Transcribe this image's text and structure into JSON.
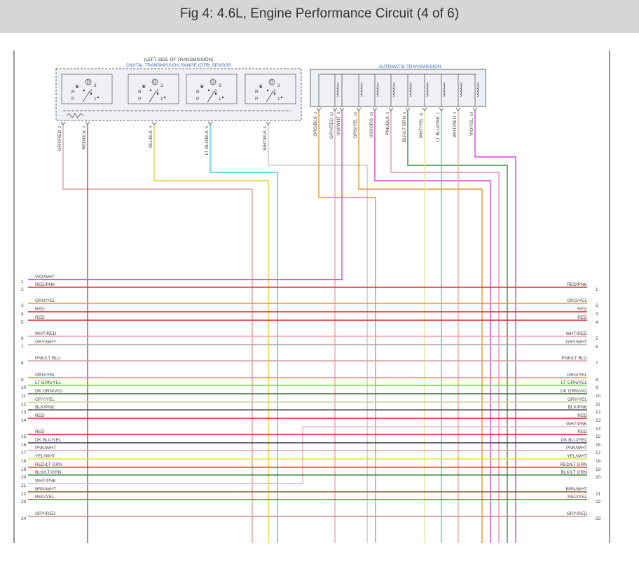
{
  "header": {
    "title": "Fig 4: 4.6L, Engine Performance Circuit (4 of 6)"
  },
  "dtr_sensor": {
    "location": "(LEFT SIDE OF TRANSMISSION)",
    "name": "DIGITAL TRANSMISSION RANGE (DTR) SENSOR",
    "switch_labels": [
      "N",
      "R",
      "P",
      "D",
      "3",
      "2",
      "1"
    ],
    "pins": [
      {
        "wire": "GRY/RED",
        "pin": 2,
        "color": "#d9a09a"
      },
      {
        "wire": "RED/BLK",
        "pin": 3,
        "color": "#d43a3a"
      },
      {
        "wire": "YEL/BLK",
        "pin": 4,
        "color": "#e6d23a"
      },
      {
        "wire": "LT BLU/BLK",
        "pin": 5,
        "color": "#3ad0e0"
      },
      {
        "wire": "WHT/BLK",
        "pin": 6,
        "color": "#c8c8c8"
      }
    ]
  },
  "transmission": {
    "name": "AUTOMATIC TRANSMISSION",
    "pins": [
      {
        "wire": "ORG/BLK",
        "pin": 2,
        "color": "#e8962a"
      },
      {
        "wire": "GRY/RED",
        "pin": 12,
        "color": "#e0a8a8"
      },
      {
        "wire": "VIO/WHT",
        "pin": 3,
        "color": "#e040e0"
      },
      {
        "wire": "ORG/YEL",
        "pin": 16,
        "color": "#e8962a"
      },
      {
        "wire": "VIO/ORG",
        "pin": 15,
        "color": "#e040d0"
      },
      {
        "wire": "PNK/BLK",
        "pin": 6,
        "color": "#e890b0"
      },
      {
        "wire": "BLK/LT GRN",
        "pin": 5,
        "color": "#3a8a3a"
      },
      {
        "wire": "WHT/YEL",
        "pin": 11,
        "color": "#f0e0a0"
      },
      {
        "wire": "LT BLU/PNK",
        "pin": 1,
        "color": "#3ad0e0"
      },
      {
        "wire": "WHT/RED",
        "pin": 4,
        "color": "#e8a8a0"
      },
      {
        "wire": "VIO/YEL",
        "pin": 14,
        "color": "#e040e0"
      }
    ]
  },
  "harness_rows": [
    {
      "left_pin": 1,
      "label": "VIO/WHT",
      "color": "#e040e0"
    },
    {
      "left_pin": 2,
      "label": "RED/PNK",
      "right_pin": 1,
      "color": "#d93030"
    },
    {
      "left_pin": 3,
      "label": "ORG/YEL",
      "right_pin": 2,
      "color": "#e8962a"
    },
    {
      "left_pin": 4,
      "label": "RED",
      "right_pin": 3,
      "color": "#e02020"
    },
    {
      "left_pin": 5,
      "label": "RED",
      "right_pin": 4,
      "color": "#e02020"
    },
    {
      "left_pin": 6,
      "label": "WHT/RED",
      "right_pin": 5,
      "color": "#e8a0a0"
    },
    {
      "left_pin": 7,
      "label": "GRY/WHT",
      "right_pin": 6,
      "color": "#aaaaaa"
    },
    {
      "left_pin": 8,
      "label": "PNK/LT BLU",
      "right_pin": 7,
      "color": "#d89aa0"
    },
    {
      "left_pin": 9,
      "label": "ORG/YEL",
      "right_pin": 8,
      "color": "#e8962a"
    },
    {
      "left_pin": 10,
      "label": "LT GRN/YEL",
      "right_pin": 9,
      "color": "#7cd04a"
    },
    {
      "left_pin": 11,
      "label": "DK GRN/VIO",
      "right_pin": 10,
      "color": "#3a6a3a"
    },
    {
      "left_pin": 12,
      "label": "GRY/YEL",
      "right_pin": 11,
      "color": "#d0d090"
    },
    {
      "left_pin": 13,
      "label": "BLK/PNK",
      "right_pin": 12,
      "color": "#555555"
    },
    {
      "left_pin": 14,
      "label": "RED",
      "right_pin": 13,
      "color": "#e02020"
    },
    {
      "label": "WHT/PNK",
      "right_pin": 14,
      "color": "#e8b0c0"
    },
    {
      "left_pin": 15,
      "label": "RED",
      "right_pin": 15,
      "color": "#e02020"
    },
    {
      "left_pin": 16,
      "label": "DK BLU/YEL",
      "right_pin": 16,
      "color": "#333355"
    },
    {
      "left_pin": 17,
      "label": "PNK/WHT",
      "right_pin": 17,
      "color": "#e0a0b0"
    },
    {
      "left_pin": 18,
      "label": "YEL/WHT",
      "right_pin": 18,
      "color": "#e8e040"
    },
    {
      "left_pin": 19,
      "label": "RED/LT GRN",
      "right_pin": 19,
      "color": "#e04020"
    },
    {
      "left_pin": 20,
      "label": "BLK/LT GRN",
      "right_pin": 20,
      "color": "#3a8a3a"
    },
    {
      "left_pin": 21,
      "label": "WHT/PNK",
      "color": "#e8b0c0"
    },
    {
      "left_pin": 22,
      "label": "BRN/WHT",
      "right_pin": 21,
      "color": "#8a5a2a"
    },
    {
      "left_pin": 23,
      "label": "RED/YEL",
      "right_pin": 22,
      "color": "#e05020"
    },
    {
      "left_pin": 24,
      "label": "GRY/RED",
      "right_pin": 23,
      "color": "#c89090"
    }
  ]
}
